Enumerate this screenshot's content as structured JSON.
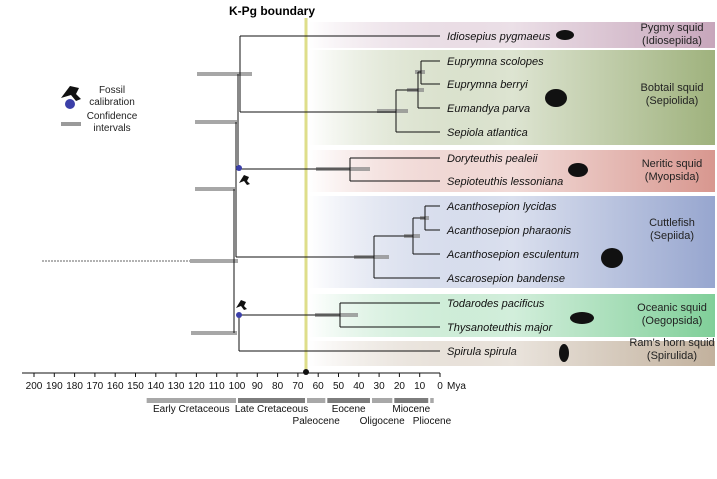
{
  "title": "K-Pg boundary",
  "legend": {
    "fossil": "Fossil calibration",
    "ci": "Confidence intervals",
    "fossil_color": "#3b3fa8",
    "ci_color": "#9a9a9a"
  },
  "taxa": [
    "Idiosepius pygmaeus",
    "Euprymna scolopes",
    "Euprymna berryi",
    "Eumandya parva",
    "Sepiola atlantica",
    "Doryteuthis pealeii",
    "Sepioteuthis lessoniana",
    "Acanthosepion lycidas",
    "Acanthosepion pharaonis",
    "Acanthosepion esculentum",
    "Ascarosepion bandense",
    "Todarodes pacificus",
    "Thysanoteuthis major",
    "Spirula spirula"
  ],
  "clades": [
    {
      "name": "Pygmy squid",
      "group": "(Idiosepiida)",
      "color": "#c7a6bb",
      "icon": "pygmy-squid-icon"
    },
    {
      "name": "Bobtail squid",
      "group": "(Sepiolida)",
      "color": "#9fb27d",
      "icon": "bobtail-squid-icon"
    },
    {
      "name": "Neritic squid",
      "group": "(Myopsida)",
      "color": "#d8978f",
      "icon": "neritic-squid-icon"
    },
    {
      "name": "Cuttlefish",
      "group": "(Sepiida)",
      "color": "#97a6cf",
      "icon": "cuttlefish-icon"
    },
    {
      "name": "Oceanic squid",
      "group": "(Oegopsida)",
      "color": "#80cf99",
      "icon": "oceanic-squid-icon"
    },
    {
      "name": "Ram's horn squid",
      "group": "(Spirulida)",
      "color": "#c2b19d",
      "icon": "rams-horn-squid-icon"
    }
  ],
  "axis": {
    "ticks": [
      "200",
      "190",
      "180",
      "170",
      "160",
      "150",
      "140",
      "130",
      "120",
      "110",
      "100",
      "90",
      "80",
      "70",
      "60",
      "50",
      "40",
      "30",
      "20",
      "10",
      "0"
    ],
    "unit": "Mya",
    "kpg": 66
  },
  "periods": [
    {
      "name": "Early Cretaceous",
      "start": 145,
      "end": 100
    },
    {
      "name": "Late Cretaceous",
      "start": 100,
      "end": 66
    },
    {
      "name": "Paleocene",
      "start": 66,
      "end": 56
    },
    {
      "name": "Eocene",
      "start": 56,
      "end": 34
    },
    {
      "name": "Oligocene",
      "start": 34,
      "end": 23
    },
    {
      "name": "Miocene",
      "start": 23,
      "end": 5.3
    },
    {
      "name": "Pliocene",
      "start": 5.3,
      "end": 2.6
    }
  ]
}
